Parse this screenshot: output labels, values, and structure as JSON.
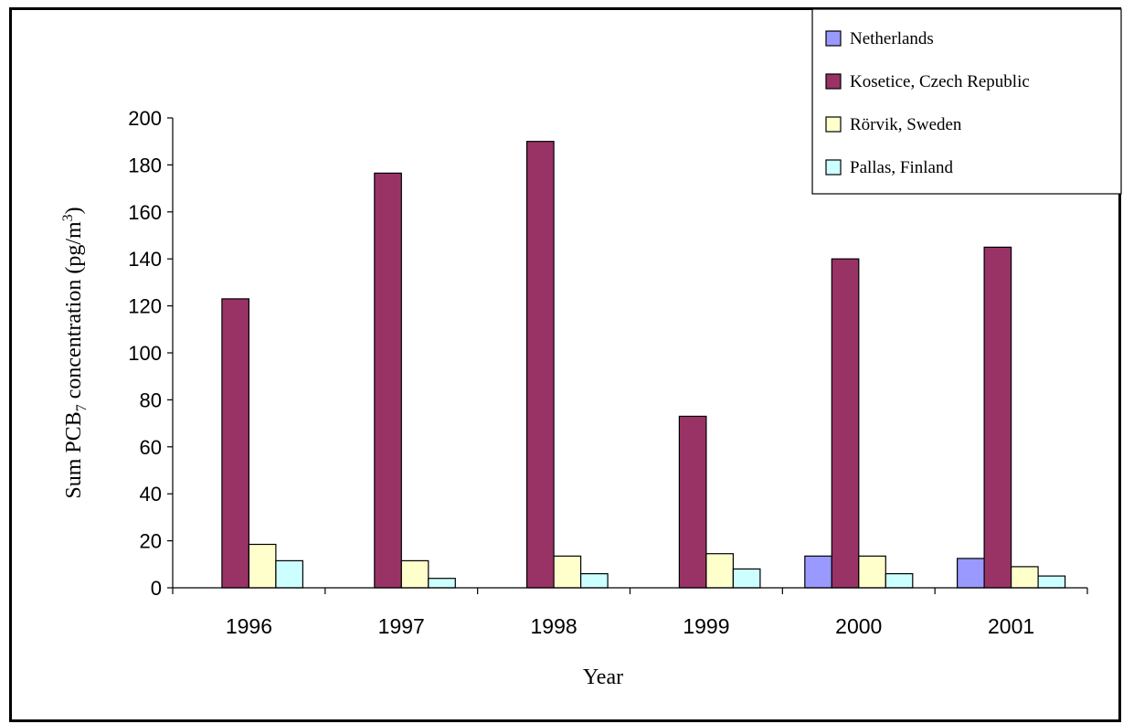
{
  "chart_data": {
    "type": "bar",
    "categories": [
      "1996",
      "1997",
      "1998",
      "1999",
      "2000",
      "2001"
    ],
    "series": [
      {
        "name": "Netherlands",
        "color": "#9999ff",
        "values": [
          0,
          0,
          0,
          0,
          13.5,
          12.5
        ]
      },
      {
        "name": "Kosetice, Czech Republic",
        "color": "#993366",
        "values": [
          123,
          176.5,
          190,
          73,
          140,
          145
        ]
      },
      {
        "name": "Rörvik, Sweden",
        "color": "#ffffcc",
        "values": [
          18.5,
          11.5,
          13.5,
          14.5,
          13.5,
          9
        ]
      },
      {
        "name": "Pallas, Finland",
        "color": "#ccffff",
        "values": [
          11.5,
          4,
          6,
          8,
          6,
          5
        ]
      }
    ],
    "ylim": [
      0,
      200
    ],
    "yticks": [
      0,
      20,
      40,
      60,
      80,
      100,
      120,
      140,
      160,
      180,
      200
    ],
    "xlabel": "Year",
    "ylabel_main": "Sum PCB",
    "ylabel_sub": "7",
    "ylabel_mid": " concentration (pg/m",
    "ylabel_sup": "3",
    "ylabel_end": ")",
    "legend": "top-right",
    "grid": false
  }
}
